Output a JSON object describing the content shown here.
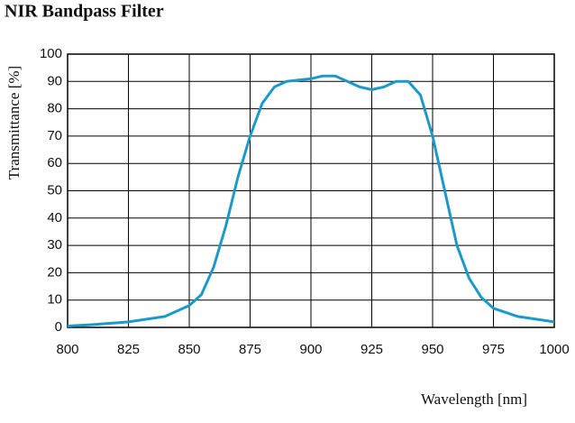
{
  "chart_data": {
    "type": "line",
    "title": "NIR Bandpass Filter",
    "x_label": "Wavelength [nm]",
    "y_label": "Transmittance [%]",
    "x": [
      800,
      810,
      825,
      840,
      850,
      855,
      860,
      865,
      870,
      875,
      880,
      885,
      890,
      900,
      905,
      910,
      915,
      920,
      925,
      930,
      935,
      940,
      945,
      950,
      955,
      960,
      965,
      970,
      975,
      985,
      1000
    ],
    "series": [
      {
        "name": "Transmittance",
        "color": "#1b9ac9",
        "values": [
          0.5,
          1,
          2,
          4,
          8,
          12,
          22,
          37,
          55,
          70,
          82,
          88,
          90,
          91,
          92,
          92,
          90,
          88,
          87,
          88,
          90,
          90,
          85,
          70,
          50,
          30,
          18,
          11,
          7,
          4,
          2
        ]
      }
    ],
    "xlim": [
      800,
      1000
    ],
    "xticks": [
      800,
      825,
      850,
      875,
      900,
      925,
      950,
      975,
      1000
    ],
    "ylim": [
      0,
      100
    ],
    "yticks": [
      0,
      10,
      20,
      30,
      40,
      50,
      60,
      70,
      80,
      90,
      100
    ],
    "grid": true
  }
}
